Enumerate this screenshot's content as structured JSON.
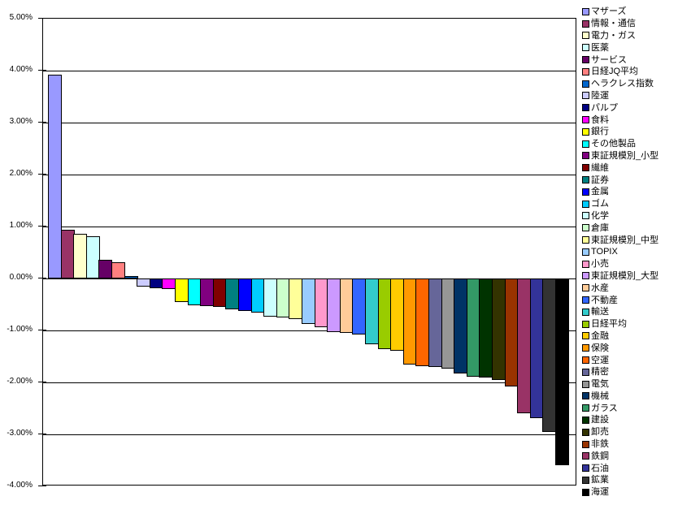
{
  "chart_data": {
    "type": "bar",
    "title": "",
    "xlabel": "",
    "ylabel": "",
    "ylim": [
      -4,
      5
    ],
    "ytick_step": 1,
    "yticks": [
      "5.00%",
      "4.00%",
      "3.00%",
      "2.00%",
      "1.00%",
      "0.00%",
      "-1.00%",
      "-2.00%",
      "-3.00%",
      "-4.00%"
    ],
    "grid": true,
    "legend_position": "right",
    "x_axis_labels_visible": false,
    "series": [
      {
        "name": "マザーズ",
        "value": 3.92,
        "color": "#9999FF"
      },
      {
        "name": "情報・通信",
        "value": 0.94,
        "color": "#993366"
      },
      {
        "name": "電力・ガス",
        "value": 0.86,
        "color": "#FFFFCC"
      },
      {
        "name": "医薬",
        "value": 0.81,
        "color": "#CCFFFF"
      },
      {
        "name": "サービス",
        "value": 0.36,
        "color": "#660066"
      },
      {
        "name": "日経JQ平均",
        "value": 0.31,
        "color": "#FF8080"
      },
      {
        "name": "ヘラクレス指数",
        "value": 0.05,
        "color": "#0066CC"
      },
      {
        "name": "陸運",
        "value": -0.16,
        "color": "#CCCCFF"
      },
      {
        "name": "パルプ",
        "value": -0.18,
        "color": "#000080"
      },
      {
        "name": "食料",
        "value": -0.2,
        "color": "#FF00FF"
      },
      {
        "name": "銀行",
        "value": -0.46,
        "color": "#FFFF00"
      },
      {
        "name": "その他製品",
        "value": -0.52,
        "color": "#00FFFF"
      },
      {
        "name": "東証規模別_小型",
        "value": -0.53,
        "color": "#800080"
      },
      {
        "name": "繊維",
        "value": -0.54,
        "color": "#800000"
      },
      {
        "name": "証券",
        "value": -0.59,
        "color": "#008080"
      },
      {
        "name": "金属",
        "value": -0.62,
        "color": "#0000FF"
      },
      {
        "name": "ゴム",
        "value": -0.66,
        "color": "#00CCFF"
      },
      {
        "name": "化学",
        "value": -0.74,
        "color": "#CCFFFF"
      },
      {
        "name": "倉庫",
        "value": -0.75,
        "color": "#CCFFCC"
      },
      {
        "name": "東証規模別_中型",
        "value": -0.78,
        "color": "#FFFF99"
      },
      {
        "name": "TOPIX",
        "value": -0.88,
        "color": "#99CCFF"
      },
      {
        "name": "小売",
        "value": -0.94,
        "color": "#FF99CC"
      },
      {
        "name": "東証規模別_大型",
        "value": -1.03,
        "color": "#CC99FF"
      },
      {
        "name": "水産",
        "value": -1.05,
        "color": "#FFCC99"
      },
      {
        "name": "不動産",
        "value": -1.08,
        "color": "#3366FF"
      },
      {
        "name": "輸送",
        "value": -1.27,
        "color": "#33CCCC"
      },
      {
        "name": "日経平均",
        "value": -1.36,
        "color": "#99CC00"
      },
      {
        "name": "金融",
        "value": -1.39,
        "color": "#FFCC00"
      },
      {
        "name": "保険",
        "value": -1.66,
        "color": "#FF9900"
      },
      {
        "name": "空運",
        "value": -1.69,
        "color": "#FF6600"
      },
      {
        "name": "精密",
        "value": -1.71,
        "color": "#666699"
      },
      {
        "name": "電気",
        "value": -1.74,
        "color": "#969696"
      },
      {
        "name": "機械",
        "value": -1.83,
        "color": "#003366"
      },
      {
        "name": "ガラス",
        "value": -1.89,
        "color": "#339966"
      },
      {
        "name": "建設",
        "value": -1.91,
        "color": "#003300"
      },
      {
        "name": "卸売",
        "value": -1.95,
        "color": "#333300"
      },
      {
        "name": "非鉄",
        "value": -2.08,
        "color": "#993300"
      },
      {
        "name": "鉄鋼",
        "value": -2.59,
        "color": "#993366"
      },
      {
        "name": "石油",
        "value": -2.69,
        "color": "#333399"
      },
      {
        "name": "鉱業",
        "value": -2.96,
        "color": "#333333"
      },
      {
        "name": "海運",
        "value": -3.59,
        "color": "#000000"
      }
    ]
  }
}
